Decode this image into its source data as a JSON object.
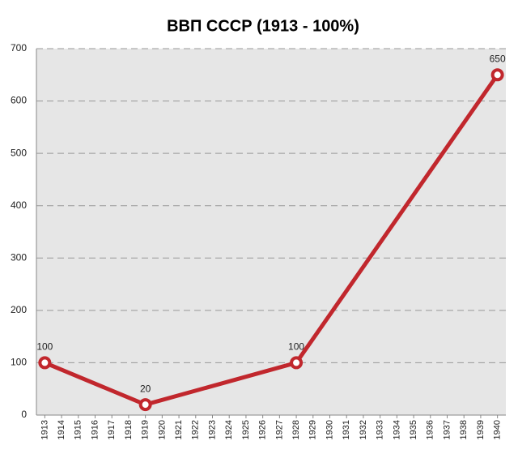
{
  "chart_data": {
    "type": "line",
    "title": "ВВП СССР (1913 - 100%)",
    "x": [
      1913,
      1919,
      1928,
      1940
    ],
    "series": [
      {
        "name": "ВВП",
        "color": "#c1272d",
        "values": [
          100,
          20,
          100,
          650
        ]
      }
    ],
    "xlim": [
      1912.5,
      1940.5
    ],
    "xticks": [
      1913,
      1914,
      1915,
      1916,
      1917,
      1918,
      1919,
      1920,
      1921,
      1922,
      1923,
      1924,
      1925,
      1926,
      1927,
      1928,
      1929,
      1930,
      1931,
      1932,
      1933,
      1934,
      1935,
      1936,
      1937,
      1938,
      1939,
      1940
    ],
    "ylim": [
      0,
      700
    ],
    "yticks": [
      0,
      100,
      200,
      300,
      400,
      500,
      600,
      700
    ],
    "grid": true,
    "plot_background": "#e6e6e6"
  }
}
